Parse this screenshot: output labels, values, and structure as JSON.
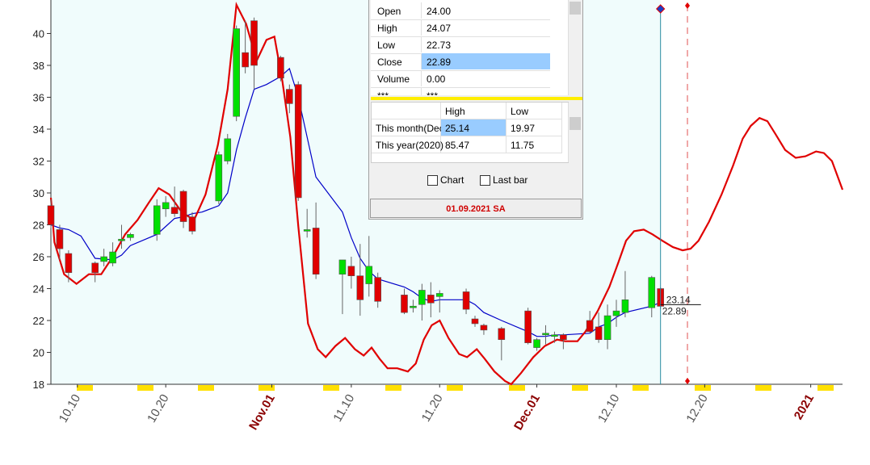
{
  "chart_data": {
    "type": "candlestick",
    "x": [
      6,
      7,
      8,
      11,
      12,
      13,
      14,
      15,
      18,
      19,
      20,
      21,
      22,
      25,
      26,
      27,
      28,
      29,
      32,
      33,
      34,
      35,
      36,
      39,
      40,
      41,
      42,
      43,
      46,
      47,
      48,
      49,
      50,
      53,
      54,
      55,
      57,
      60,
      61,
      62,
      63,
      64,
      67,
      68,
      69,
      70,
      71,
      74,
      75
    ],
    "open": [
      29.2,
      27.7,
      26.2,
      25.6,
      25.7,
      25.6,
      27.0,
      27.2,
      27.4,
      29.0,
      29.1,
      30.1,
      28.5,
      29.5,
      32.0,
      34.8,
      38.8,
      40.8,
      38.5,
      36.5,
      36.8,
      27.6,
      27.8,
      24.9,
      25.4,
      24.8,
      24.3,
      24.7,
      23.6,
      22.8,
      23.0,
      23.6,
      23.5,
      23.8,
      22.1,
      21.7,
      21.5,
      22.6,
      20.3,
      21.1,
      21.0,
      21.1,
      22.0,
      21.6,
      20.8,
      22.3,
      22.5,
      22.8,
      24.0
    ],
    "high": [
      29.6,
      28.0,
      26.4,
      25.7,
      26.5,
      26.9,
      28.0,
      27.5,
      29.6,
      29.8,
      30.4,
      30.2,
      28.8,
      32.6,
      33.7,
      40.5,
      40.8,
      41.0,
      38.6,
      36.8,
      37.0,
      29.0,
      29.4,
      25.8,
      26.0,
      26.8,
      27.3,
      25.0,
      24.0,
      23.3,
      24.3,
      24.4,
      23.9,
      24.0,
      22.3,
      21.8,
      21.6,
      22.8,
      20.9,
      21.7,
      21.3,
      21.2,
      22.6,
      22.5,
      23.0,
      23.3,
      25.1,
      24.8,
      24.07
    ],
    "low": [
      27.8,
      25.8,
      24.4,
      24.4,
      25.4,
      25.4,
      26.5,
      27.0,
      27.0,
      28.5,
      28.5,
      27.8,
      27.4,
      29.3,
      31.8,
      34.5,
      37.5,
      36.5,
      37.0,
      35.0,
      29.5,
      27.2,
      24.6,
      22.4,
      24.0,
      22.3,
      23.5,
      22.8,
      22.4,
      22.5,
      22.0,
      22.2,
      22.5,
      22.4,
      21.6,
      21.1,
      19.5,
      20.5,
      20.1,
      20.5,
      20.6,
      20.2,
      21.2,
      20.6,
      20.2,
      21.6,
      22.2,
      22.2,
      22.73
    ],
    "close": [
      28.0,
      26.5,
      25.0,
      25.0,
      26.0,
      26.3,
      27.1,
      27.4,
      29.2,
      29.4,
      28.7,
      28.2,
      27.6,
      32.4,
      33.4,
      40.3,
      37.9,
      38.0,
      37.2,
      35.6,
      29.7,
      27.7,
      24.9,
      25.8,
      24.8,
      23.3,
      25.4,
      23.2,
      22.5,
      22.9,
      23.9,
      23.1,
      23.7,
      22.7,
      21.8,
      21.4,
      20.8,
      20.6,
      20.8,
      21.2,
      21.1,
      20.8,
      21.3,
      20.8,
      22.3,
      22.6,
      23.3,
      24.7,
      22.89
    ],
    "up_color": "#00e000",
    "down_color": "#e00000",
    "series": [
      {
        "color": "#0000c8",
        "x": [
          6,
          7,
          8,
          9.4,
          11,
          13,
          14,
          15,
          18,
          19,
          20,
          21,
          22,
          23.1,
          25,
          26,
          27,
          28,
          29,
          30.4,
          32,
          33,
          34,
          35,
          36,
          39,
          40,
          41,
          42,
          43,
          46,
          47,
          48,
          49,
          50,
          53,
          54,
          55,
          57,
          60,
          61,
          62,
          63,
          64,
          67,
          68,
          69,
          70,
          71,
          74,
          75
        ],
        "values": [
          28.0,
          27.8,
          27.7,
          27.3,
          25.9,
          25.8,
          26.1,
          26.7,
          27.4,
          27.9,
          28.4,
          28.5,
          28.7,
          28.8,
          29.2,
          30.0,
          32.7,
          34.7,
          36.5,
          36.8,
          37.3,
          37.8,
          36.0,
          33.5,
          31.0,
          28.8,
          27.2,
          25.9,
          25.1,
          24.6,
          24.1,
          23.8,
          23.4,
          23.2,
          23.3,
          23.3,
          23.0,
          22.5,
          22.0,
          21.3,
          21.0,
          21.0,
          21.1,
          21.1,
          21.2,
          21.6,
          21.8,
          22.2,
          22.5,
          22.9,
          23.14
        ]
      },
      {
        "color": "#e00000",
        "x": [
          6.0,
          6.4,
          7.5,
          8.9,
          10.3,
          11.7,
          13.0,
          14.4,
          15.8,
          17.1,
          18.2,
          19.4,
          20.8,
          22.2,
          23.5,
          24.9,
          26.0,
          27.0,
          28.1,
          29.3,
          30.4,
          31.3,
          32.2,
          33.1,
          34.0,
          35.1,
          36.2,
          37.1,
          38.2,
          39.3,
          40.4,
          41.4,
          42.3,
          43.2,
          44.1,
          45.2,
          46.4,
          47.3,
          48.2,
          49.1,
          50.0,
          51.0,
          52.2,
          53.1,
          54.2,
          55.1,
          56.2,
          57.4,
          58.1,
          59.2,
          60.6,
          61.9,
          63.3,
          64.2,
          65.6,
          66.5,
          67.9,
          69.2,
          70.2,
          71.1,
          72.0,
          73.1,
          74.1,
          75.2,
          76.4,
          77.5,
          78.4,
          79.3,
          80.5,
          81.9,
          83.2,
          84.3,
          85.2,
          86.2,
          87.1,
          88.0,
          89.1,
          90.3,
          91.4,
          92.6,
          93.5,
          94.4,
          95.6
        ],
        "values": [
          29.7,
          26.9,
          24.9,
          24.3,
          24.9,
          24.9,
          26.0,
          27.4,
          28.3,
          29.4,
          30.3,
          29.9,
          28.8,
          28.3,
          29.9,
          33.0,
          36.5,
          41.8,
          40.6,
          38.3,
          39.6,
          39.8,
          37.0,
          33.5,
          27.9,
          21.8,
          20.2,
          19.7,
          20.4,
          20.9,
          20.2,
          19.8,
          20.3,
          19.6,
          19.0,
          19.0,
          18.8,
          19.3,
          20.8,
          21.7,
          22.0,
          20.9,
          19.9,
          19.7,
          20.2,
          19.6,
          18.8,
          18.2,
          18.0,
          18.7,
          19.7,
          20.4,
          20.8,
          20.7,
          20.7,
          21.3,
          22.6,
          24.1,
          25.6,
          27.0,
          27.6,
          27.7,
          27.4,
          27.0,
          26.6,
          26.4,
          26.5,
          27.0,
          28.2,
          29.9,
          31.7,
          33.4,
          34.2,
          34.7,
          34.5,
          33.7,
          32.7,
          32.2,
          32.3,
          32.6,
          32.5,
          32.0,
          30.2
        ]
      }
    ],
    "xlim": [
      6,
      95.6
    ],
    "ylim": [
      18,
      42.1
    ],
    "yticks": [
      18,
      20,
      22,
      24,
      26,
      28,
      30,
      32,
      34,
      36,
      38,
      40
    ],
    "xticks": [
      {
        "value": 9,
        "label": "10.10",
        "color": "#555555"
      },
      {
        "value": 19,
        "label": "10.20",
        "color": "#555555"
      },
      {
        "value": 31,
        "label": "Nov.01",
        "color": "#8b0000"
      },
      {
        "value": 40,
        "label": "11.10",
        "color": "#555555"
      },
      {
        "value": 50,
        "label": "11.20",
        "color": "#555555"
      },
      {
        "value": 61,
        "label": "Dec.01",
        "color": "#8b0000"
      },
      {
        "value": 70,
        "label": "12.10",
        "color": "#555555"
      },
      {
        "value": 80,
        "label": "12.20",
        "color": "#555555"
      },
      {
        "value": 92,
        "label": "2021",
        "color": "#8b0000"
      }
    ]
  },
  "info_table": {
    "rows": [
      [
        "Open",
        "24.00"
      ],
      [
        "High",
        "24.07"
      ],
      [
        "Low",
        "22.73"
      ],
      [
        "Close",
        "22.89"
      ],
      [
        "Volume",
        "0.00"
      ],
      [
        "***",
        "***"
      ]
    ]
  },
  "range_table": {
    "header": [
      "High",
      "Low"
    ],
    "rows": [
      [
        "This month(Dec)",
        "25.14",
        "19.97"
      ],
      [
        "This year(2020)",
        "85.47",
        "11.75"
      ]
    ]
  },
  "checkboxes": [
    "Chart",
    "Last bar"
  ],
  "status_date": "01.09.2021 SA"
}
